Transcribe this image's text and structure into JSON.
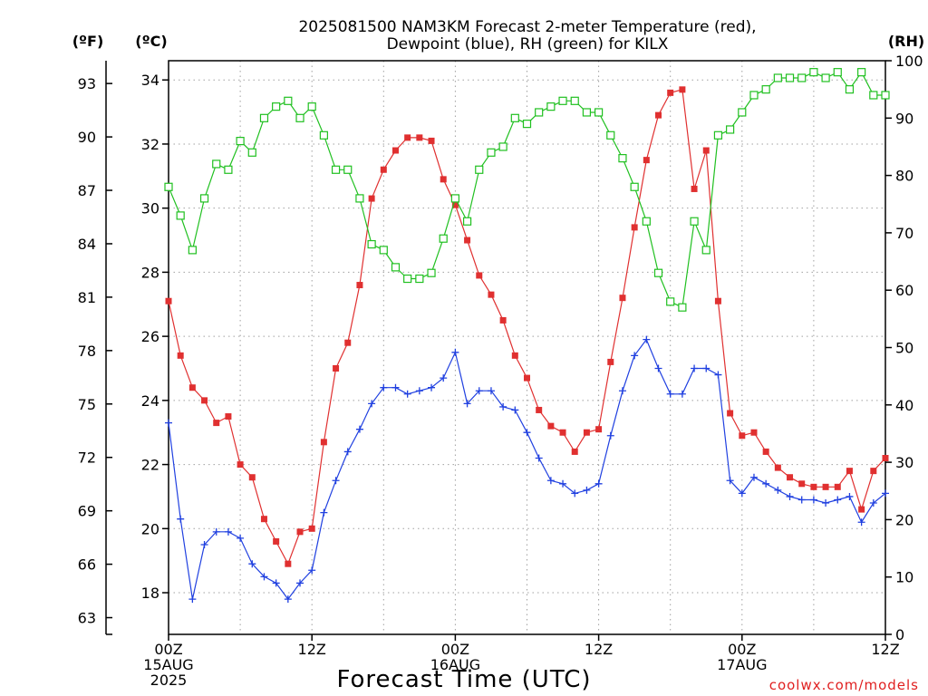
{
  "chart_data": {
    "type": "line",
    "title_lines": [
      "2025081500 NAM3KM Forecast 2-meter Temperature (red),",
      "Dewpoint (blue), RH (green) for KILX"
    ],
    "xlabel": "Forecast Time (UTC)",
    "credit": "coolwx.com/models",
    "units": {
      "f": "(ºF)",
      "c": "(ºC)",
      "rh": "(RH)"
    },
    "x_range_hours": [
      0,
      60
    ],
    "x_ticks": [
      {
        "hour": 0,
        "lines": [
          "00Z",
          "15AUG",
          "2025"
        ]
      },
      {
        "hour": 12,
        "lines": [
          "12Z"
        ]
      },
      {
        "hour": 24,
        "lines": [
          "00Z",
          "16AUG"
        ]
      },
      {
        "hour": 36,
        "lines": [
          "12Z"
        ]
      },
      {
        "hour": 48,
        "lines": [
          "00Z",
          "17AUG"
        ]
      },
      {
        "hour": 60,
        "lines": [
          "12Z"
        ]
      }
    ],
    "c_range": [
      16.7,
      34.6
    ],
    "c_ticks": [
      "18",
      "20",
      "22",
      "24",
      "26",
      "28",
      "30",
      "32",
      "34"
    ],
    "f_ticks": [
      "63",
      "66",
      "69",
      "72",
      "75",
      "78",
      "81",
      "84",
      "87",
      "90",
      "93"
    ],
    "rh_range": [
      0,
      100
    ],
    "rh_ticks": [
      "0",
      "10",
      "20",
      "30",
      "40",
      "50",
      "60",
      "70",
      "80",
      "90",
      "100"
    ],
    "grid": true,
    "colors": {
      "temperature": "#e03030",
      "dewpoint": "#2040e0",
      "rh": "#20c020",
      "grid": "#a0a0a0"
    },
    "series": [
      {
        "name": "Temperature",
        "axis": "c",
        "marker": "filled-square",
        "color": "#e03030",
        "values": [
          27.1,
          25.4,
          24.4,
          24.0,
          23.3,
          23.5,
          22.0,
          21.6,
          20.3,
          19.6,
          18.9,
          19.9,
          20.0,
          22.7,
          25.0,
          25.8,
          27.6,
          30.3,
          31.2,
          31.8,
          32.2,
          32.2,
          32.1,
          30.9,
          30.1,
          29.0,
          27.9,
          27.3,
          26.5,
          25.4,
          24.7,
          23.7,
          23.2,
          23.0,
          22.4,
          23.0,
          23.1,
          25.2,
          27.2,
          29.4,
          31.5,
          32.9,
          33.6,
          33.7,
          30.6,
          31.8,
          27.1,
          23.6,
          22.9,
          23.0,
          22.4,
          21.9,
          21.6,
          21.4,
          21.3,
          21.3,
          21.3,
          21.8,
          20.6,
          21.8,
          22.2
        ]
      },
      {
        "name": "Dewpoint",
        "axis": "c",
        "marker": "plus",
        "color": "#2040e0",
        "values": [
          23.3,
          20.3,
          17.8,
          19.5,
          19.9,
          19.9,
          19.7,
          18.9,
          18.5,
          18.3,
          17.8,
          18.3,
          18.7,
          20.5,
          21.5,
          22.4,
          23.1,
          23.9,
          24.4,
          24.4,
          24.2,
          24.3,
          24.4,
          24.7,
          25.5,
          23.9,
          24.3,
          24.3,
          23.8,
          23.7,
          23.0,
          22.2,
          21.5,
          21.4,
          21.1,
          21.2,
          21.4,
          22.9,
          24.3,
          25.4,
          25.9,
          25.0,
          24.2,
          24.2,
          25.0,
          25.0,
          24.8,
          21.5,
          21.1,
          21.6,
          21.4,
          21.2,
          21.0,
          20.9,
          20.9,
          20.8,
          20.9,
          21.0,
          20.2,
          20.8,
          21.1
        ]
      },
      {
        "name": "RH",
        "axis": "rh",
        "marker": "open-square",
        "color": "#20c020",
        "values": [
          78,
          73,
          67,
          76,
          82,
          81,
          86,
          84,
          90,
          92,
          93,
          90,
          92,
          87,
          81,
          81,
          76,
          68,
          67,
          64,
          62,
          62,
          63,
          69,
          76,
          72,
          81,
          84,
          85,
          90,
          89,
          91,
          92,
          93,
          93,
          91,
          91,
          87,
          83,
          78,
          72,
          63,
          58,
          57,
          72,
          67,
          87,
          88,
          91,
          94,
          95,
          97,
          97,
          97,
          98,
          97,
          98,
          95,
          98,
          94,
          94
        ]
      }
    ]
  }
}
